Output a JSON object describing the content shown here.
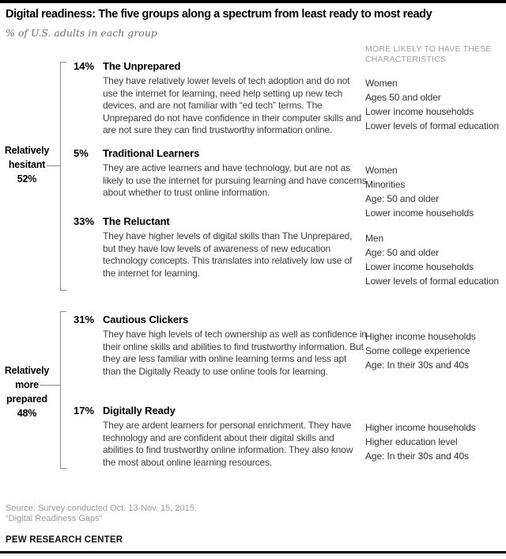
{
  "header": {
    "title": "Digital readiness: The five groups along a spectrum from least ready to most ready",
    "subtitle": "% of U.S. adults in each group",
    "right_column_header": "MORE LIKELY TO HAVE THESE CHARACTERISTICS"
  },
  "clusters": [
    {
      "lines": [
        "Relatively",
        "hesitant"
      ],
      "pct": "52%"
    },
    {
      "lines": [
        "Relatively",
        "more",
        "prepared"
      ],
      "pct": "48%"
    }
  ],
  "groups": [
    {
      "pct": "14%",
      "name": "The Unprepared",
      "description": "They have relatively lower levels of tech adoption and do not use the internet for learning, need help setting up new tech devices, and are not familiar with “ed tech” terms. The Unprepared do not have confidence in their computer skills and are not sure they can find trustworthy information online.",
      "characteristics": [
        "Women",
        "Ages 50 and older",
        "Lower income households",
        "Lower levels of formal education"
      ]
    },
    {
      "pct": "5%",
      "name": "Traditional Learners",
      "description": "They are active learners and have technology, but are not as likely to use the internet for pursuing learning and have concerns about whether to trust online information.",
      "characteristics": [
        "Women",
        "Minorities",
        "Age: 50 and older",
        "Lower income households"
      ]
    },
    {
      "pct": "33%",
      "name": "The Reluctant",
      "description": "They have higher levels of digital skills than The Unprepared, but they have low levels of awareness of new education technology concepts. This translates into relatively low use of the internet for learning.",
      "characteristics": [
        "Men",
        "Age: 50 and older",
        "Lower income households",
        "Lower levels of formal education"
      ]
    },
    {
      "pct": "31%",
      "name": "Cautious Clickers",
      "description": "They have high levels of tech ownership as well as confidence in their online skills and abilities to find trustworthy information. But they are less familiar with online learning terms and less apt than the Digitally Ready to use online tools for learning.",
      "characteristics": [
        "Higher income households",
        "Some college experience",
        "Age: In their 30s and 40s"
      ]
    },
    {
      "pct": "17%",
      "name": "Digitally Ready",
      "description": "They are ardent learners for personal enrichment. They have technology and are confident about their digital skills and abilities to find trustworthy online information. They also know the most about online learning resources.",
      "characteristics": [
        "Higher income households",
        "Higher education level",
        "Age: In their 30s and 40s"
      ]
    }
  ],
  "footer": {
    "source_line1": "Source: Survey conducted Oct. 13-Nov. 15, 2015.",
    "source_line2": "“Digital Readiness Gaps”",
    "brand": "PEW RESEARCH CENTER"
  },
  "chart_data": {
    "type": "table",
    "title": "Digital readiness: The five groups along a spectrum from least ready to most ready",
    "subtitle": "% of U.S. adults in each group",
    "categories": [
      "The Unprepared",
      "Traditional Learners",
      "The Reluctant",
      "Cautious Clickers",
      "Digitally Ready"
    ],
    "values": [
      14,
      5,
      33,
      31,
      17
    ],
    "cluster_totals": [
      {
        "label": "Relatively hesitant",
        "value": 52
      },
      {
        "label": "Relatively more prepared",
        "value": 48
      }
    ]
  }
}
